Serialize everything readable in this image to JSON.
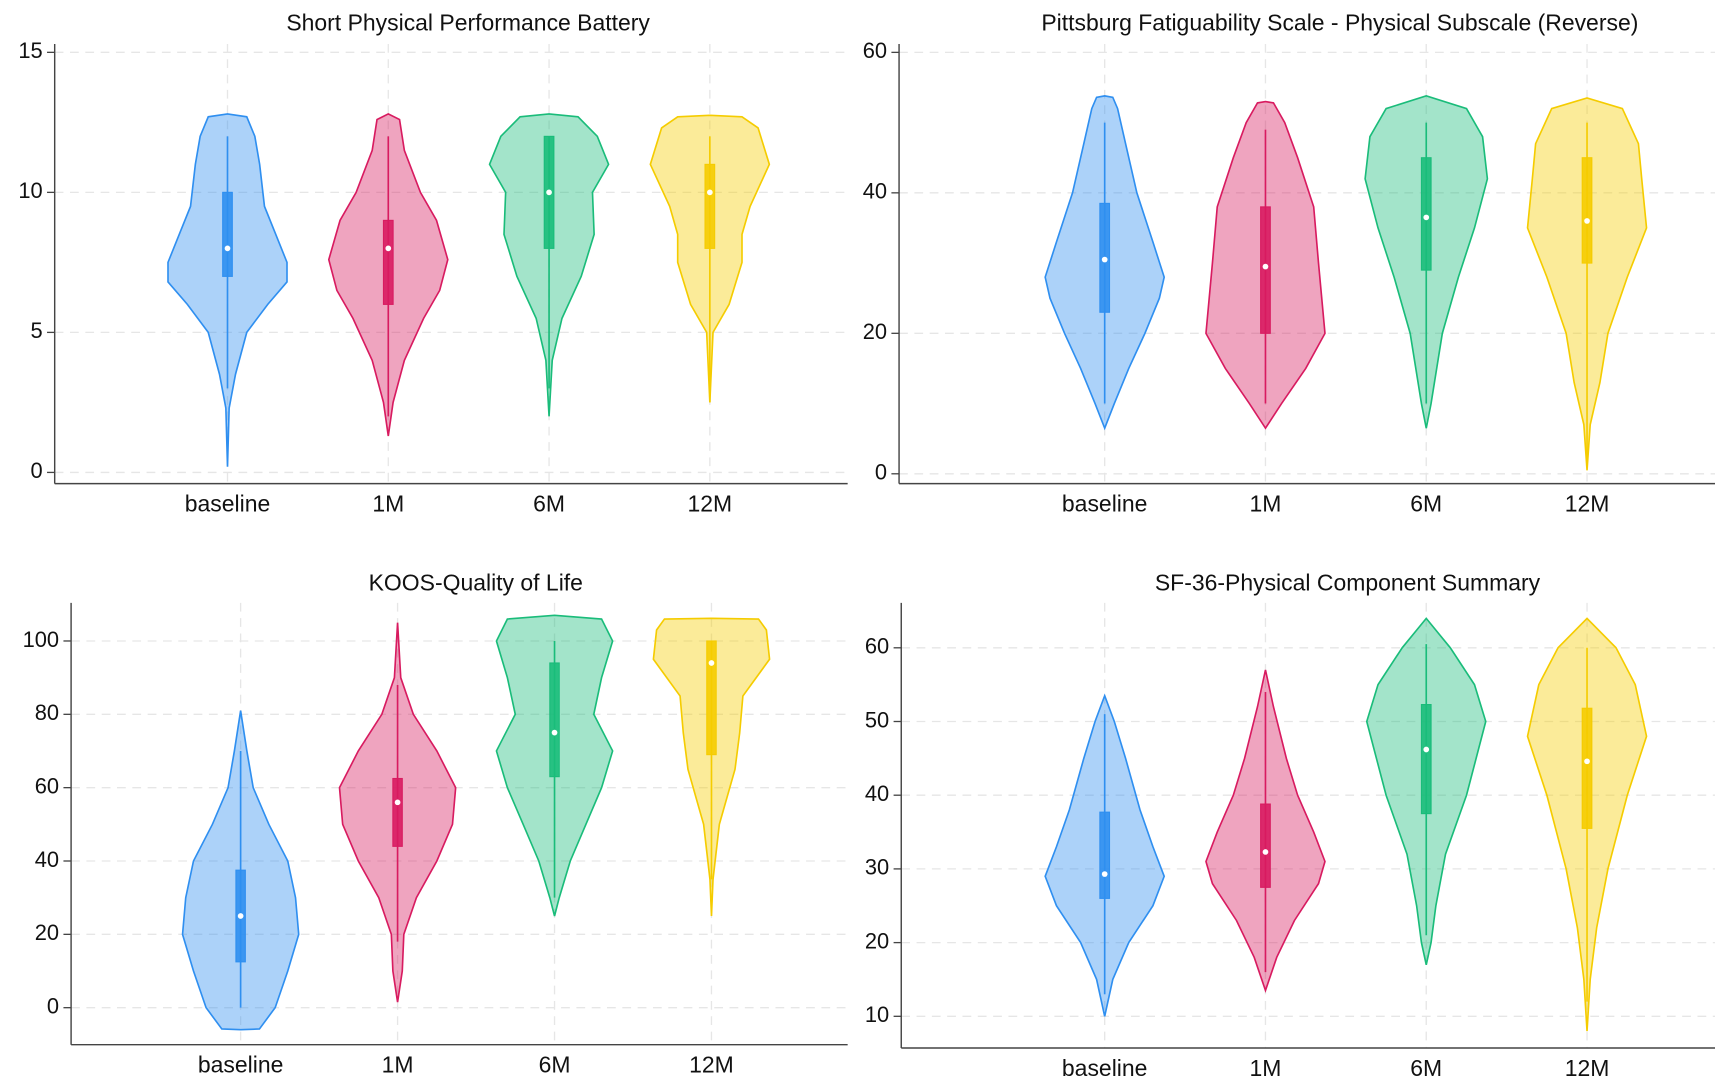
{
  "chart_data": [
    {
      "type": "violin",
      "title": "Short Physical Performance Battery",
      "categories": [
        "baseline",
        "1M",
        "6M",
        "12M"
      ],
      "colors": [
        "#2f8ff0",
        "#d81b60",
        "#1abc7a",
        "#f5cc00"
      ],
      "ylim": [
        -0.4,
        15.3
      ],
      "yticks": [
        0,
        5,
        10,
        15
      ],
      "grid": true,
      "violins": [
        {
          "whisker_low": 3,
          "q1": 7,
          "median": 8,
          "q3": 10,
          "whisker_high": 12,
          "density": [
            [
              0.2,
              0
            ],
            [
              2.3,
              0.01
            ],
            [
              3.5,
              0.05
            ],
            [
              5,
              0.12
            ],
            [
              6,
              0.25
            ],
            [
              6.8,
              0.37
            ],
            [
              7.5,
              0.37
            ],
            [
              8.5,
              0.3
            ],
            [
              9.5,
              0.23
            ],
            [
              11,
              0.2
            ],
            [
              12,
              0.17
            ],
            [
              12.7,
              0.12
            ],
            [
              12.8,
              0
            ]
          ]
        },
        {
          "whisker_low": 2,
          "q1": 6,
          "median": 8,
          "q3": 9,
          "whisker_high": 12,
          "density": [
            [
              1.3,
              0
            ],
            [
              2.5,
              0.03
            ],
            [
              4,
              0.1
            ],
            [
              5.5,
              0.22
            ],
            [
              6.5,
              0.32
            ],
            [
              7.6,
              0.37
            ],
            [
              9,
              0.3
            ],
            [
              10,
              0.2
            ],
            [
              11.5,
              0.1
            ],
            [
              12.6,
              0.07
            ],
            [
              12.8,
              0
            ]
          ]
        },
        {
          "whisker_low": 3,
          "q1": 8,
          "median": 10,
          "q3": 12,
          "whisker_high": 12,
          "density": [
            [
              2,
              0
            ],
            [
              4,
              0.02
            ],
            [
              5.5,
              0.08
            ],
            [
              7,
              0.2
            ],
            [
              8.5,
              0.28
            ],
            [
              10,
              0.27
            ],
            [
              11,
              0.37
            ],
            [
              12,
              0.3
            ],
            [
              12.7,
              0.18
            ],
            [
              12.8,
              0
            ]
          ]
        },
        {
          "whisker_low": 2.5,
          "q1": 8,
          "median": 10,
          "q3": 11,
          "whisker_high": 12,
          "density": [
            [
              2.5,
              0
            ],
            [
              5,
              0.02
            ],
            [
              6,
              0.12
            ],
            [
              7.5,
              0.2
            ],
            [
              8.5,
              0.2
            ],
            [
              9.5,
              0.25
            ],
            [
              11,
              0.37
            ],
            [
              12.3,
              0.3
            ],
            [
              12.7,
              0.2
            ],
            [
              12.75,
              0
            ]
          ]
        }
      ]
    },
    {
      "type": "violin",
      "title": "Pittsburg Fatiguability Scale - Physical Subscale (Reverse)",
      "categories": [
        "baseline",
        "1M",
        "6M",
        "12M"
      ],
      "colors": [
        "#2f8ff0",
        "#d81b60",
        "#1abc7a",
        "#f5cc00"
      ],
      "ylim": [
        -1.4,
        61.2
      ],
      "yticks": [
        0,
        20,
        40,
        60
      ],
      "grid": true,
      "violins": [
        {
          "whisker_low": 10,
          "q1": 23,
          "median": 30.5,
          "q3": 38.5,
          "whisker_high": 50,
          "density": [
            [
              6.5,
              0
            ],
            [
              10,
              0.06
            ],
            [
              15,
              0.15
            ],
            [
              20,
              0.25
            ],
            [
              25,
              0.34
            ],
            [
              28,
              0.37
            ],
            [
              33,
              0.3
            ],
            [
              40,
              0.2
            ],
            [
              47,
              0.13
            ],
            [
              52,
              0.08
            ],
            [
              53.6,
              0.05
            ],
            [
              53.8,
              0
            ]
          ]
        },
        {
          "whisker_low": 10,
          "q1": 20,
          "median": 29.5,
          "q3": 38,
          "whisker_high": 49,
          "density": [
            [
              6.5,
              0
            ],
            [
              10,
              0.1
            ],
            [
              15,
              0.25
            ],
            [
              20,
              0.37
            ],
            [
              30,
              0.33
            ],
            [
              38,
              0.3
            ],
            [
              45,
              0.2
            ],
            [
              50,
              0.12
            ],
            [
              52.8,
              0.05
            ],
            [
              53,
              0
            ]
          ]
        },
        {
          "whisker_low": 10,
          "q1": 29,
          "median": 36.5,
          "q3": 45,
          "whisker_high": 50,
          "density": [
            [
              6.5,
              0
            ],
            [
              10,
              0.03
            ],
            [
              20,
              0.1
            ],
            [
              28,
              0.2
            ],
            [
              35,
              0.3
            ],
            [
              42,
              0.38
            ],
            [
              48,
              0.35
            ],
            [
              52,
              0.25
            ],
            [
              53.8,
              0
            ]
          ]
        },
        {
          "whisker_low": 2,
          "q1": 30,
          "median": 36,
          "q3": 45,
          "whisker_high": 50,
          "density": [
            [
              0.5,
              0
            ],
            [
              7,
              0.02
            ],
            [
              13,
              0.08
            ],
            [
              20,
              0.13
            ],
            [
              28,
              0.25
            ],
            [
              35,
              0.37
            ],
            [
              42,
              0.34
            ],
            [
              47,
              0.32
            ],
            [
              52,
              0.22
            ],
            [
              53.5,
              0
            ]
          ]
        }
      ]
    },
    {
      "type": "violin",
      "title": "KOOS-Quality of Life",
      "categories": [
        "baseline",
        "1M",
        "6M",
        "12M"
      ],
      "colors": [
        "#2f8ff0",
        "#d81b60",
        "#1abc7a",
        "#f5cc00"
      ],
      "ylim": [
        -10.1,
        110.4
      ],
      "yticks": [
        0,
        20,
        40,
        60,
        80,
        100
      ],
      "grid": true,
      "violins": [
        {
          "whisker_low": 0,
          "q1": 12.5,
          "median": 25,
          "q3": 37.5,
          "whisker_high": 70,
          "density": [
            [
              -6,
              0
            ],
            [
              -5.8,
              0.12
            ],
            [
              0,
              0.22
            ],
            [
              10,
              0.3
            ],
            [
              20,
              0.37
            ],
            [
              30,
              0.35
            ],
            [
              40,
              0.3
            ],
            [
              50,
              0.18
            ],
            [
              60,
              0.08
            ],
            [
              70,
              0.04
            ],
            [
              81,
              0
            ]
          ]
        },
        {
          "whisker_low": 18,
          "q1": 44,
          "median": 56,
          "q3": 62.5,
          "whisker_high": 88,
          "density": [
            [
              1.5,
              0
            ],
            [
              10,
              0.03
            ],
            [
              20,
              0.04
            ],
            [
              30,
              0.12
            ],
            [
              40,
              0.25
            ],
            [
              50,
              0.35
            ],
            [
              60,
              0.37
            ],
            [
              70,
              0.25
            ],
            [
              80,
              0.1
            ],
            [
              90,
              0.02
            ],
            [
              105,
              0
            ]
          ]
        },
        {
          "whisker_low": 30,
          "q1": 63,
          "median": 75,
          "q3": 94,
          "whisker_high": 100,
          "density": [
            [
              25,
              0
            ],
            [
              30,
              0.03
            ],
            [
              40,
              0.1
            ],
            [
              50,
              0.2
            ],
            [
              60,
              0.3
            ],
            [
              70,
              0.37
            ],
            [
              80,
              0.25
            ],
            [
              90,
              0.3
            ],
            [
              100,
              0.37
            ],
            [
              106,
              0.3
            ],
            [
              107,
              0
            ]
          ]
        },
        {
          "whisker_low": 35,
          "q1": 69,
          "median": 94,
          "q3": 100,
          "whisker_high": 100,
          "density": [
            [
              25,
              0
            ],
            [
              35,
              0.01
            ],
            [
              50,
              0.05
            ],
            [
              65,
              0.15
            ],
            [
              75,
              0.18
            ],
            [
              85,
              0.2
            ],
            [
              95,
              0.37
            ],
            [
              103,
              0.35
            ],
            [
              106,
              0.3
            ],
            [
              106.2,
              0
            ]
          ]
        }
      ]
    },
    {
      "type": "violin",
      "title": "SF-36-Physical Component Summary",
      "categories": [
        "baseline",
        "1M",
        "6M",
        "12M"
      ],
      "colors": [
        "#2f8ff0",
        "#d81b60",
        "#1abc7a",
        "#f5cc00"
      ],
      "ylim": [
        5.7,
        66.1
      ],
      "yticks": [
        10,
        20,
        30,
        40,
        50,
        60
      ],
      "grid": true,
      "violins": [
        {
          "whisker_low": 13,
          "q1": 26,
          "median": 29.3,
          "q3": 37.7,
          "whisker_high": 51,
          "density": [
            [
              10,
              0
            ],
            [
              15,
              0.05
            ],
            [
              20,
              0.15
            ],
            [
              25,
              0.3
            ],
            [
              29,
              0.37
            ],
            [
              33,
              0.3
            ],
            [
              38,
              0.22
            ],
            [
              45,
              0.13
            ],
            [
              50,
              0.06
            ],
            [
              53.5,
              0
            ]
          ]
        },
        {
          "whisker_low": 16,
          "q1": 27.5,
          "median": 32.3,
          "q3": 38.8,
          "whisker_high": 54,
          "density": [
            [
              13.5,
              0
            ],
            [
              18,
              0.07
            ],
            [
              23,
              0.18
            ],
            [
              28,
              0.33
            ],
            [
              31,
              0.37
            ],
            [
              35,
              0.3
            ],
            [
              40,
              0.2
            ],
            [
              45,
              0.13
            ],
            [
              52,
              0.05
            ],
            [
              57,
              0
            ]
          ]
        },
        {
          "whisker_low": 21,
          "q1": 37.5,
          "median": 46.2,
          "q3": 52.3,
          "whisker_high": 60.5,
          "density": [
            [
              17,
              0
            ],
            [
              20,
              0.03
            ],
            [
              25,
              0.06
            ],
            [
              32,
              0.12
            ],
            [
              40,
              0.25
            ],
            [
              50,
              0.37
            ],
            [
              55,
              0.3
            ],
            [
              60,
              0.15
            ],
            [
              64,
              0
            ]
          ]
        },
        {
          "whisker_low": 12,
          "q1": 35.5,
          "median": 44.6,
          "q3": 51.8,
          "whisker_high": 60,
          "density": [
            [
              8,
              0
            ],
            [
              15,
              0.02
            ],
            [
              22,
              0.06
            ],
            [
              30,
              0.13
            ],
            [
              40,
              0.25
            ],
            [
              48,
              0.37
            ],
            [
              55,
              0.3
            ],
            [
              60,
              0.18
            ],
            [
              64,
              0
            ]
          ]
        }
      ]
    }
  ]
}
